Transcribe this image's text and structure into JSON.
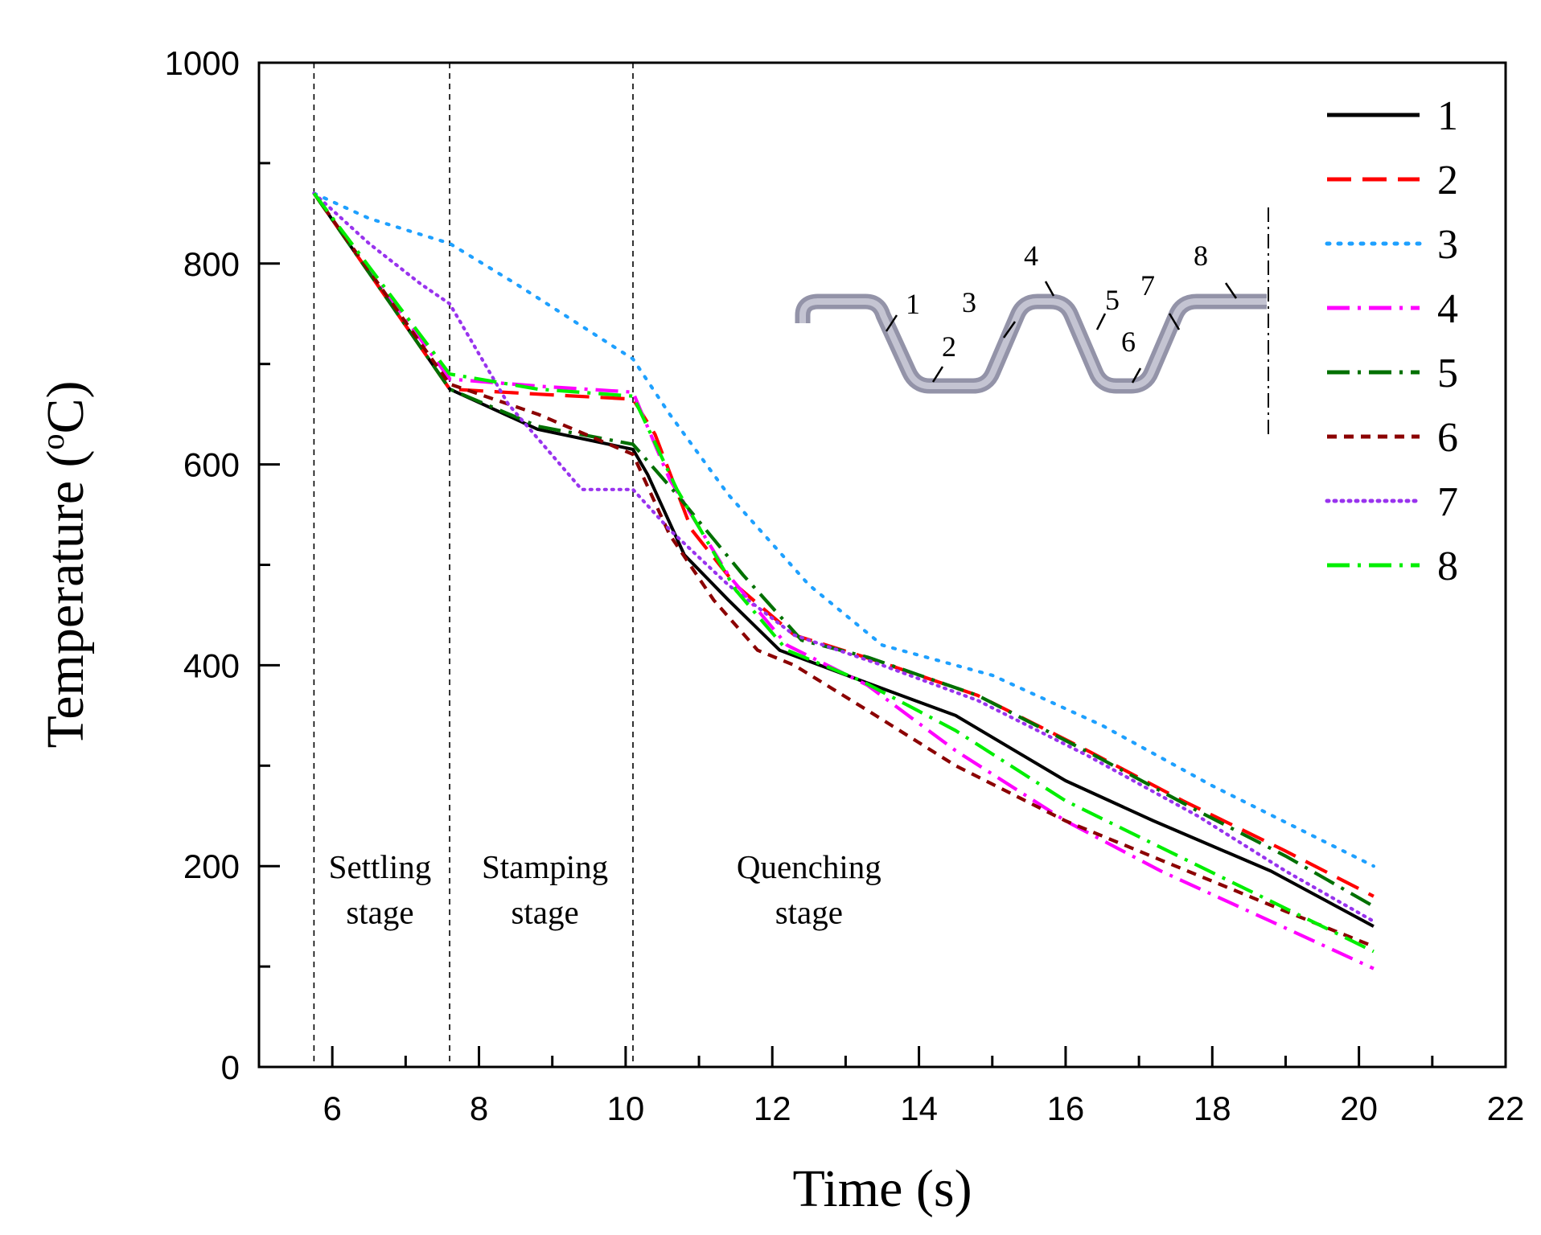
{
  "chart_data": {
    "type": "line",
    "xlabel": "Time (s)",
    "ylabel": "Temperature (°C)",
    "ylabel_parts": {
      "before": "Temperature (",
      "sup": "o",
      "after": "C)"
    },
    "xlim": [
      5,
      22
    ],
    "ylim": [
      0,
      1000
    ],
    "x_ticks": [
      6,
      8,
      10,
      12,
      14,
      16,
      18,
      20,
      22
    ],
    "y_ticks": [
      0,
      200,
      400,
      600,
      800,
      1000
    ],
    "grid": false,
    "legend_position": "top-right",
    "stage_boundaries": [
      5.75,
      7.6,
      10.1
    ],
    "stages": [
      {
        "line1": "Settling",
        "line2": "stage",
        "x": 6.65
      },
      {
        "line1": "Stamping",
        "line2": "stage",
        "x": 8.9
      },
      {
        "line1": "Quenching",
        "line2": "stage",
        "x": 12.5
      }
    ],
    "series": [
      {
        "name": "1",
        "color": "#000000",
        "dash": "solid",
        "points": [
          [
            5.75,
            870
          ],
          [
            7.6,
            675
          ],
          [
            8.8,
            635
          ],
          [
            10.1,
            615
          ],
          [
            10.3,
            590
          ],
          [
            10.8,
            510
          ],
          [
            11.4,
            465
          ],
          [
            12.1,
            415
          ],
          [
            13.2,
            385
          ],
          [
            14.5,
            350
          ],
          [
            16,
            285
          ],
          [
            17.2,
            245
          ],
          [
            18.8,
            195
          ],
          [
            20.2,
            140
          ]
        ]
      },
      {
        "name": "2",
        "color": "#ff0000",
        "dash": "dash",
        "points": [
          [
            5.75,
            870
          ],
          [
            7.6,
            675
          ],
          [
            8.8,
            670
          ],
          [
            10.1,
            665
          ],
          [
            10.4,
            630
          ],
          [
            10.9,
            535
          ],
          [
            11.5,
            480
          ],
          [
            12.3,
            430
          ],
          [
            13.4,
            405
          ],
          [
            14.8,
            370
          ],
          [
            16.3,
            315
          ],
          [
            17.6,
            265
          ],
          [
            19,
            215
          ],
          [
            20.2,
            170
          ]
        ]
      },
      {
        "name": "3",
        "color": "#1ea0ff",
        "dash": "dot",
        "points": [
          [
            5.75,
            870
          ],
          [
            6.5,
            845
          ],
          [
            7.6,
            820
          ],
          [
            8.5,
            780
          ],
          [
            10.1,
            705
          ],
          [
            10.6,
            650
          ],
          [
            11.4,
            570
          ],
          [
            12.5,
            480
          ],
          [
            13.5,
            420
          ],
          [
            15,
            390
          ],
          [
            16.5,
            340
          ],
          [
            18,
            280
          ],
          [
            20.2,
            200
          ]
        ]
      },
      {
        "name": "4",
        "color": "#ff00ff",
        "dash": "dashdot",
        "points": [
          [
            5.75,
            870
          ],
          [
            7.6,
            685
          ],
          [
            8.8,
            678
          ],
          [
            10.1,
            672
          ],
          [
            10.6,
            585
          ],
          [
            11.4,
            490
          ],
          [
            12.2,
            420
          ],
          [
            13.3,
            380
          ],
          [
            14.5,
            315
          ],
          [
            16,
            245
          ],
          [
            17.3,
            195
          ],
          [
            18.8,
            145
          ],
          [
            20.2,
            98
          ]
        ]
      },
      {
        "name": "5",
        "color": "#007000",
        "dash": "dashdot",
        "points": [
          [
            5.75,
            870
          ],
          [
            7.6,
            675
          ],
          [
            8.8,
            638
          ],
          [
            10.1,
            620
          ],
          [
            10.7,
            570
          ],
          [
            11.6,
            490
          ],
          [
            12.4,
            425
          ],
          [
            13.3,
            408
          ],
          [
            14.8,
            370
          ],
          [
            16.4,
            310
          ],
          [
            17.8,
            255
          ],
          [
            19,
            210
          ],
          [
            20.2,
            160
          ]
        ]
      },
      {
        "name": "6",
        "color": "#8b0000",
        "dash": "shortdash",
        "points": [
          [
            5.75,
            870
          ],
          [
            7.6,
            680
          ],
          [
            8.8,
            650
          ],
          [
            10.1,
            610
          ],
          [
            10.6,
            530
          ],
          [
            11.2,
            465
          ],
          [
            11.8,
            415
          ],
          [
            12.3,
            400
          ],
          [
            13.3,
            355
          ],
          [
            14.5,
            300
          ],
          [
            16,
            245
          ],
          [
            17.5,
            200
          ],
          [
            19,
            155
          ],
          [
            20.2,
            120
          ]
        ]
      },
      {
        "name": "7",
        "color": "#9933ee",
        "dash": "fineDot",
        "points": [
          [
            5.75,
            870
          ],
          [
            6.5,
            820
          ],
          [
            7.2,
            780
          ],
          [
            7.6,
            760
          ],
          [
            8.4,
            660
          ],
          [
            9.4,
            575
          ],
          [
            10.1,
            575
          ],
          [
            10.6,
            535
          ],
          [
            11.4,
            480
          ],
          [
            12.3,
            430
          ],
          [
            13.5,
            400
          ],
          [
            14.8,
            365
          ],
          [
            16.3,
            310
          ],
          [
            17.8,
            250
          ],
          [
            19,
            195
          ],
          [
            20.2,
            145
          ]
        ]
      },
      {
        "name": "8",
        "color": "#00ee00",
        "dash": "dashdot",
        "points": [
          [
            5.75,
            870
          ],
          [
            7.6,
            690
          ],
          [
            8.8,
            675
          ],
          [
            10.1,
            668
          ],
          [
            10.7,
            575
          ],
          [
            11.5,
            475
          ],
          [
            12.2,
            415
          ],
          [
            13.2,
            385
          ],
          [
            14.5,
            335
          ],
          [
            16,
            265
          ],
          [
            17.4,
            215
          ],
          [
            18.8,
            165
          ],
          [
            20.2,
            115
          ]
        ]
      }
    ],
    "inset": {
      "labels": [
        "1",
        "2",
        "3",
        "4",
        "5",
        "6",
        "7",
        "8"
      ]
    }
  }
}
